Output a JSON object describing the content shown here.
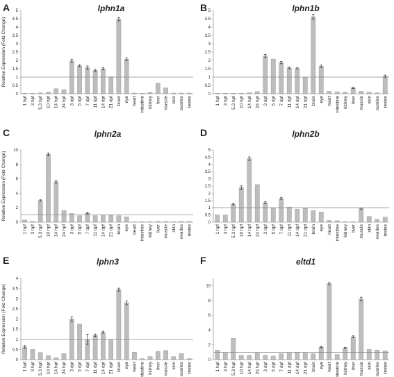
{
  "figure": {
    "ylabel": "Relative Expression (Fold Change)"
  },
  "chart_data": [
    {
      "type": "bar",
      "panel": "A",
      "title": "lphn1a",
      "ylabel": "Relative Expression (Fold Change)",
      "ylim": [
        0,
        5
      ],
      "yticks": [
        "0",
        "0.5",
        "1",
        "1.5",
        "2",
        "2.5",
        "3",
        "3.5",
        "4",
        "4.5",
        "5"
      ],
      "reference_line": 1,
      "categories": [
        "1 hpf",
        "3 hpf",
        "5.3 hpf",
        "10 hpf",
        "14 hpf",
        "24 hpf",
        "3 dpf",
        "5 dpf",
        "7 dpf",
        "11 dpf",
        "14 dpf",
        "21 dpf",
        "brain",
        "eye",
        "heart",
        "intestine",
        "kidney",
        "liver",
        "muscle",
        "skin",
        "ovaries",
        "testes"
      ],
      "values": [
        0.03,
        0.03,
        0.05,
        0.1,
        0.3,
        0.25,
        1.97,
        1.68,
        1.57,
        1.4,
        1.5,
        1.02,
        4.47,
        2.07,
        0.04,
        0.03,
        0.08,
        0.63,
        0.35,
        0.04,
        0.04,
        0.04
      ],
      "errors": [
        0,
        0,
        0,
        0,
        0,
        0,
        0.09,
        0.06,
        0.1,
        0.07,
        0.06,
        0,
        0.1,
        0.08,
        0,
        0,
        0,
        0,
        0,
        0,
        0,
        0
      ]
    },
    {
      "type": "bar",
      "panel": "B",
      "title": "lphn1b",
      "ylim": [
        0,
        5
      ],
      "yticks": [
        "0",
        "0.5",
        "1",
        "1.5",
        "2",
        "2.5",
        "3",
        "3.5",
        "4",
        "4.5",
        "5"
      ],
      "reference_line": 1,
      "categories": [
        "1 hpf",
        "3 hpf",
        "5.3 hpf",
        "10 hpf",
        "14 hpf",
        "24 hpf",
        "3 dpf",
        "5 dpf",
        "7 dpf",
        "11 dpf",
        "14 dpf",
        "21 dpf",
        "brain",
        "eye",
        "heart",
        "intestine",
        "kidney",
        "liver",
        "muscle",
        "skin",
        "ovaries",
        "testes"
      ],
      "values": [
        0.03,
        0.03,
        0.03,
        0.03,
        0.06,
        0.13,
        2.27,
        2.08,
        1.87,
        1.55,
        1.52,
        0.98,
        4.62,
        1.65,
        0.15,
        0.12,
        0.1,
        0.35,
        0.15,
        0.1,
        0.05,
        1.05
      ],
      "errors": [
        0,
        0,
        0,
        0,
        0,
        0,
        0.09,
        0,
        0.07,
        0.05,
        0.04,
        0,
        0.15,
        0.07,
        0,
        0,
        0,
        0.04,
        0,
        0,
        0,
        0.07
      ]
    },
    {
      "type": "bar",
      "panel": "C",
      "title": "lphn2a",
      "ylabel": "Relative Expression (Fold Change)",
      "ylim": [
        0,
        10
      ],
      "yticks": [
        "0",
        "2",
        "4",
        "6",
        "8",
        "10"
      ],
      "reference_line": 1,
      "categories": [
        "1 hpf",
        "3 hpf",
        "5.3 hpf",
        "10 hpf",
        "14 hpf",
        "24 hpf",
        "3 dpf",
        "5 dpf",
        "7 dpf",
        "11 dpf",
        "14 dpf",
        "21 dpf",
        "brain",
        "eye",
        "heart",
        "intestine",
        "kidney",
        "liver",
        "muscle",
        "skin",
        "ovaries",
        "testes"
      ],
      "values": [
        0.3,
        0.1,
        3.0,
        9.4,
        5.6,
        1.6,
        1.2,
        0.9,
        1.25,
        0.9,
        1.0,
        0.95,
        0.9,
        0.75,
        0.05,
        0.07,
        0.05,
        0.1,
        0.1,
        0.05,
        0.1,
        0.1
      ],
      "errors": [
        0,
        0,
        0.1,
        0.2,
        0.2,
        0,
        0,
        0,
        0.1,
        0,
        0,
        0,
        0,
        0,
        0,
        0,
        0,
        0,
        0,
        0,
        0,
        0
      ]
    },
    {
      "type": "bar",
      "panel": "D",
      "title": "lphn2b",
      "ylim": [
        0,
        5
      ],
      "yticks": [
        "0",
        "0.5",
        "1",
        "1.5",
        "2",
        "2.5",
        "3",
        "3.5",
        "4",
        "4.5",
        "5"
      ],
      "reference_line": 1,
      "categories": [
        "1 hpf",
        "3 hpf",
        "5.3 hpf",
        "10 hpf",
        "14 hpf",
        "24 hpf",
        "3 dpf",
        "5 dpf",
        "7 dpf",
        "11 dpf",
        "14 dpf",
        "21 dpf",
        "brain",
        "eye",
        "heart",
        "intestine",
        "kidney",
        "liver",
        "muscle",
        "skin",
        "ovaries",
        "testes"
      ],
      "values": [
        0.5,
        0.5,
        1.25,
        2.4,
        4.4,
        2.6,
        1.35,
        1.0,
        1.65,
        1.05,
        0.9,
        0.95,
        0.8,
        0.7,
        0.12,
        0.1,
        0.03,
        0.03,
        0.95,
        0.4,
        0.2,
        0.35
      ],
      "errors": [
        0,
        0,
        0.05,
        0.12,
        0.12,
        0,
        0.07,
        0,
        0.07,
        0,
        0,
        0,
        0,
        0,
        0,
        0,
        0,
        0,
        0.05,
        0,
        0,
        0
      ]
    },
    {
      "type": "bar",
      "panel": "E",
      "title": "lphn3",
      "ylabel": "Relative Expression (Fold Change)",
      "ylim": [
        0,
        4
      ],
      "yticks": [
        "0",
        "0.5",
        "1",
        "1.5",
        "2",
        "2.5",
        "3",
        "3.5",
        "4"
      ],
      "reference_line": 1,
      "categories": [
        "1 hpf",
        "3 hpf",
        "5.3 hpf",
        "10 hpf",
        "14 hpf",
        "24 hpf",
        "3 dpf",
        "5 dpf",
        "7 dpf",
        "11 dpf",
        "14 dpf",
        "21 dpf",
        "brain",
        "eye",
        "heart",
        "intestine",
        "kidney",
        "liver",
        "muscle",
        "skin",
        "ovaries",
        "testes"
      ],
      "values": [
        0.63,
        0.5,
        0.35,
        0.2,
        0.1,
        0.3,
        2.0,
        1.75,
        1.0,
        1.2,
        1.35,
        1.0,
        3.45,
        2.8,
        0.37,
        0.05,
        0.15,
        0.4,
        0.45,
        0.15,
        0.3,
        0.05
      ],
      "errors": [
        0.06,
        0,
        0,
        0,
        0,
        0,
        0.12,
        0,
        0.25,
        0.06,
        0.05,
        0,
        0.07,
        0.1,
        0,
        0,
        0,
        0,
        0,
        0,
        0,
        0
      ]
    },
    {
      "type": "bar",
      "panel": "F",
      "title": "eltd1",
      "ylim": [
        0,
        11
      ],
      "yticks": [
        "0",
        "2",
        "4",
        "6",
        "8",
        "10"
      ],
      "reference_line": 1,
      "categories": [
        "1 hpf",
        "3 hpf",
        "5.3 hpf",
        "10 hpf",
        "14 hpf",
        "24 hpf",
        "3 dpf",
        "5 dpf",
        "7 dpf",
        "11 dpf",
        "14 dpf",
        "21 dpf",
        "brain",
        "eye",
        "heart",
        "intestine",
        "kidney",
        "liver",
        "muscle",
        "skin",
        "ovaries",
        "testes"
      ],
      "values": [
        1.3,
        0.9,
        2.9,
        0.6,
        0.6,
        0.9,
        0.6,
        0.5,
        0.8,
        0.9,
        1.0,
        0.9,
        0.8,
        1.7,
        10.3,
        0.7,
        1.6,
        3.1,
        8.2,
        1.4,
        1.3,
        1.2
      ],
      "errors": [
        0,
        0,
        0,
        0,
        0,
        0,
        0,
        0,
        0,
        0,
        0,
        0,
        0,
        0.1,
        0.15,
        0,
        0.05,
        0.12,
        0.25,
        0,
        0,
        0
      ]
    }
  ]
}
